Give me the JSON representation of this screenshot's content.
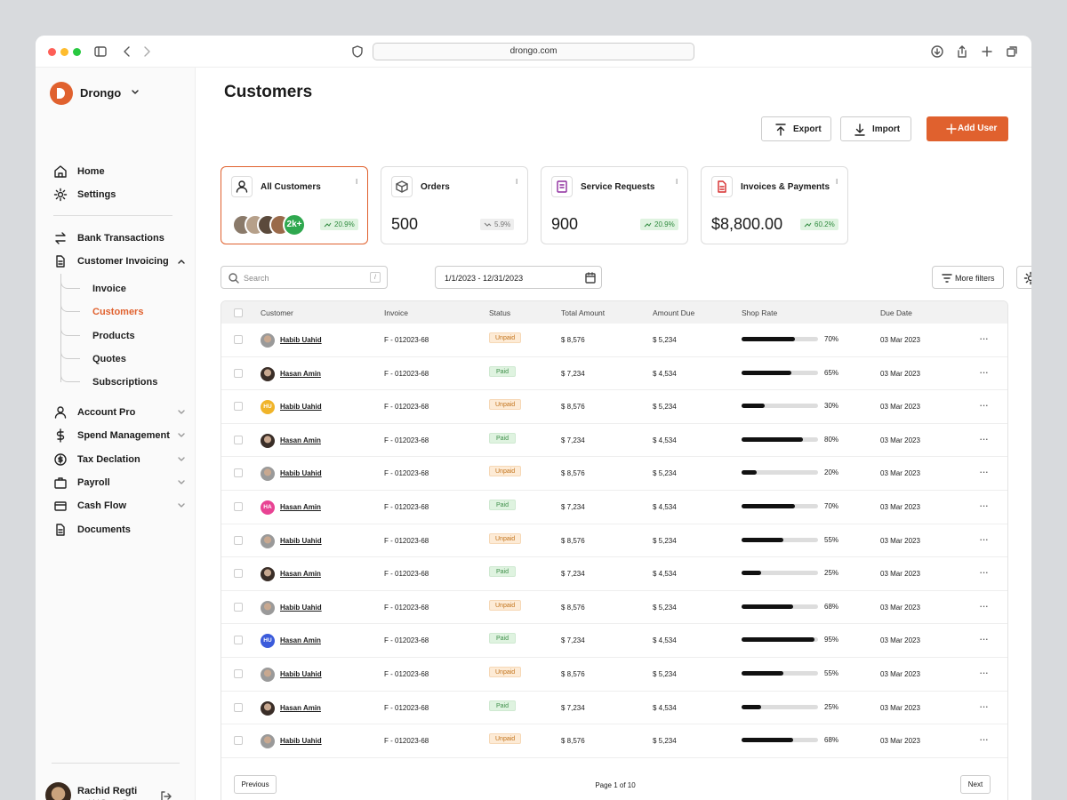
{
  "browser": {
    "url": "drongo.com"
  },
  "sidebar": {
    "brand": "Drongo",
    "nav_top": [
      "Home",
      "Settings"
    ],
    "nav_invoicing": [
      "Bank Transactions",
      "Customer Invoicing"
    ],
    "subnav": [
      "Invoice",
      "Customers",
      "Products",
      "Quotes",
      "Subscriptions"
    ],
    "nav_bottom": [
      "Account Pro",
      "Spend Management",
      "Tax Declation",
      "Payroll",
      "Cash Flow",
      "Documents"
    ],
    "user": {
      "name": "Rachid Regti",
      "email": "rachid@gmail.com"
    }
  },
  "header": {
    "title": "Customers",
    "buttons": [
      "Export",
      "Import",
      "Add User"
    ]
  },
  "cards": [
    {
      "title": "All Customers",
      "badge": "2k+",
      "change": "20.9%"
    },
    {
      "title": "Orders",
      "value": "500",
      "change": "5.9%"
    },
    {
      "title": "Service Requests",
      "value": "900",
      "change": "20.9%"
    },
    {
      "title": "Invoices & Payments",
      "value": "$8,800.00",
      "change": "60.2%"
    }
  ],
  "filters": {
    "search": "Search",
    "shortcut": "/",
    "date": "1/1/2023 - 12/31/2023",
    "more": "More filters"
  },
  "table": {
    "columns": [
      "Customer",
      "Invoice",
      "Status",
      "Total Amount",
      "Amount Due",
      "Shop Rate",
      "Due Date"
    ],
    "rows": [
      {
        "customer": "Habib Uahid",
        "invoice": "F - 012023-68",
        "status": "Unpaid",
        "total": "$ 8,576",
        "due": "$ 5,234",
        "rate": {
          "value": 70,
          "label": "70%"
        },
        "date": "03 Mar 2023"
      },
      {
        "customer": "Hasan Amin",
        "invoice": "F - 012023-68",
        "status": "Paid",
        "total": "$ 7,234",
        "due": "$ 4,534",
        "rate": {
          "value": 65,
          "label": "65%"
        },
        "date": "03 Mar 2023"
      },
      {
        "customer": "Habib Uahid",
        "initials": "HU",
        "avatar_color": "#f0b429",
        "invoice": "F - 012023-68",
        "status": "Unpaid",
        "total": "$ 8,576",
        "due": "$ 5,234",
        "rate": {
          "value": 30,
          "label": "30%"
        },
        "date": "03 Mar 2023"
      },
      {
        "customer": "Hasan Amin",
        "invoice": "F - 012023-68",
        "status": "Paid",
        "total": "$ 7,234",
        "due": "$ 4,534",
        "rate": {
          "value": 80,
          "label": "80%"
        },
        "date": "03 Mar 2023"
      },
      {
        "customer": "Habib Uahid",
        "invoice": "F - 012023-68",
        "status": "Unpaid",
        "total": "$ 8,576",
        "due": "$ 5,234",
        "rate": {
          "value": 20,
          "label": "20%"
        },
        "date": "03 Mar 2023"
      },
      {
        "customer": "Hasan Amin",
        "initials": "HA",
        "avatar_color": "#e84393",
        "invoice": "F - 012023-68",
        "status": "Paid",
        "total": "$ 7,234",
        "due": "$ 4,534",
        "rate": {
          "value": 70,
          "label": "70%"
        },
        "date": "03 Mar 2023"
      },
      {
        "customer": "Habib Uahid",
        "invoice": "F - 012023-68",
        "status": "Unpaid",
        "total": "$ 8,576",
        "due": "$ 5,234",
        "rate": {
          "value": 55,
          "label": "55%"
        },
        "date": "03 Mar 2023"
      },
      {
        "customer": "Hasan Amin",
        "invoice": "F - 012023-68",
        "status": "Paid",
        "total": "$ 7,234",
        "due": "$ 4,534",
        "rate": {
          "value": 25,
          "label": "25%"
        },
        "date": "03 Mar 2023"
      },
      {
        "customer": "Habib Uahid",
        "invoice": "F - 012023-68",
        "status": "Unpaid",
        "total": "$ 8,576",
        "due": "$ 5,234",
        "rate": {
          "value": 68,
          "label": "68%"
        },
        "date": "03 Mar 2023"
      },
      {
        "customer": "Hasan Amin",
        "initials": "HU",
        "avatar_color": "#3b5bdb",
        "invoice": "F - 012023-68",
        "status": "Paid",
        "total": "$ 7,234",
        "due": "$ 4,534",
        "rate": {
          "value": 95,
          "label": "95%"
        },
        "date": "03 Mar 2023"
      },
      {
        "customer": "Habib Uahid",
        "invoice": "F - 012023-68",
        "status": "Unpaid",
        "total": "$ 8,576",
        "due": "$ 5,234",
        "rate": {
          "value": 55,
          "label": "55%"
        },
        "date": "03 Mar 2023"
      },
      {
        "customer": "Hasan Amin",
        "invoice": "F - 012023-68",
        "status": "Paid",
        "total": "$ 7,234",
        "due": "$ 4,534",
        "rate": {
          "value": 25,
          "label": "25%"
        },
        "date": "03 Mar 2023"
      },
      {
        "customer": "Habib Uahid",
        "invoice": "F - 012023-68",
        "status": "Unpaid",
        "total": "$ 8,576",
        "due": "$ 5,234",
        "rate": {
          "value": 68,
          "label": "68%"
        },
        "date": "03 Mar 2023"
      }
    ]
  },
  "pagination": {
    "previous": "Previous",
    "page": "Page 1 of 10",
    "next": "Next"
  }
}
